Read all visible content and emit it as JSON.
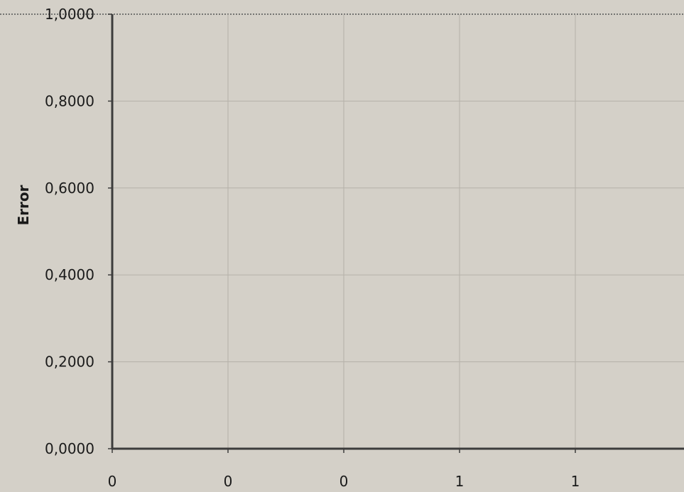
{
  "chart_data": {
    "type": "line",
    "title": "",
    "xlabel": "",
    "ylabel": "Error",
    "ylim": [
      0,
      1
    ],
    "y_ticks": [
      "0,0000",
      "0,2000",
      "0,4000",
      "0,6000",
      "0,8000",
      "1,0000"
    ],
    "x_ticks": [
      "0",
      "0",
      "0",
      "1",
      "1"
    ],
    "series": [],
    "grid": true,
    "legend": "none",
    "colors": {
      "background": "#d4d0c8",
      "grid": "#b5b1a9",
      "axis": "#3c3c3c",
      "text": "#1a1a1a"
    }
  }
}
